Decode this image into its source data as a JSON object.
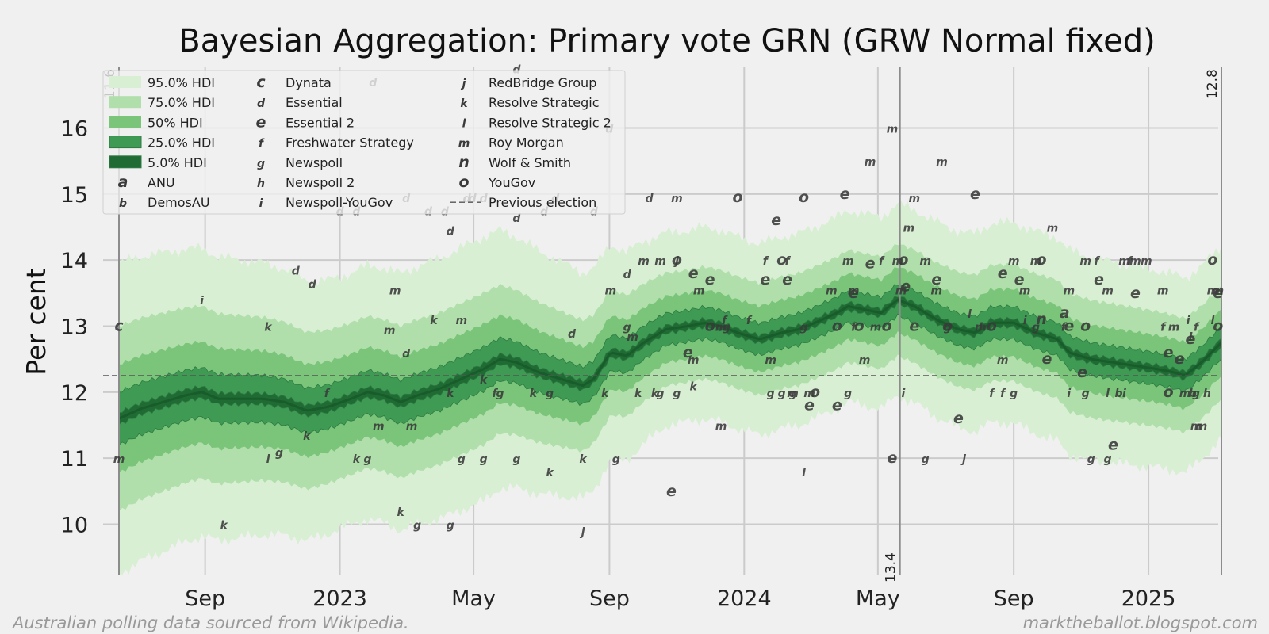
{
  "chart_data": {
    "type": "line",
    "title": "Bayesian Aggregation: Primary vote GRN (GRW Normal fixed)",
    "xlabel": "",
    "ylabel": "Per cent",
    "ylim": [
      9.2,
      16.9
    ],
    "xlim_days": [
      0,
      1005
    ],
    "yticks": [
      10,
      11,
      12,
      13,
      14,
      15,
      16
    ],
    "xticks": [
      {
        "day": 78,
        "label": "Sep"
      },
      {
        "day": 200,
        "label": "2023"
      },
      {
        "day": 321,
        "label": "May"
      },
      {
        "day": 444,
        "label": "Sep"
      },
      {
        "day": 566,
        "label": "2024"
      },
      {
        "day": 687,
        "label": "May"
      },
      {
        "day": 810,
        "label": "Sep"
      },
      {
        "day": 932,
        "label": "2025"
      }
    ],
    "previous_election": 12.25,
    "markers": [
      {
        "day": 0,
        "label": "11.6"
      },
      {
        "day": 707,
        "label": "13.4"
      },
      {
        "day": 998,
        "label": "12.8"
      }
    ],
    "median": [
      [
        0,
        11.6
      ],
      [
        20,
        11.75
      ],
      [
        40,
        11.85
      ],
      [
        60,
        11.95
      ],
      [
        75,
        12.0
      ],
      [
        90,
        11.9
      ],
      [
        110,
        11.9
      ],
      [
        130,
        11.9
      ],
      [
        150,
        11.85
      ],
      [
        170,
        11.72
      ],
      [
        190,
        11.78
      ],
      [
        210,
        11.9
      ],
      [
        225,
        12.0
      ],
      [
        240,
        11.95
      ],
      [
        255,
        11.85
      ],
      [
        270,
        11.95
      ],
      [
        290,
        12.05
      ],
      [
        310,
        12.2
      ],
      [
        330,
        12.35
      ],
      [
        345,
        12.5
      ],
      [
        360,
        12.45
      ],
      [
        380,
        12.3
      ],
      [
        400,
        12.2
      ],
      [
        420,
        12.1
      ],
      [
        430,
        12.2
      ],
      [
        445,
        12.6
      ],
      [
        460,
        12.55
      ],
      [
        475,
        12.75
      ],
      [
        495,
        12.95
      ],
      [
        515,
        13.0
      ],
      [
        530,
        13.05
      ],
      [
        545,
        13.0
      ],
      [
        560,
        12.9
      ],
      [
        580,
        12.8
      ],
      [
        600,
        12.9
      ],
      [
        615,
        12.95
      ],
      [
        630,
        13.05
      ],
      [
        650,
        13.2
      ],
      [
        660,
        13.3
      ],
      [
        675,
        13.25
      ],
      [
        690,
        13.2
      ],
      [
        705,
        13.4
      ],
      [
        720,
        13.3
      ],
      [
        740,
        13.1
      ],
      [
        760,
        12.95
      ],
      [
        775,
        12.9
      ],
      [
        790,
        13.05
      ],
      [
        810,
        13.05
      ],
      [
        830,
        12.9
      ],
      [
        850,
        12.8
      ],
      [
        860,
        12.6
      ],
      [
        880,
        12.5
      ],
      [
        900,
        12.45
      ],
      [
        920,
        12.4
      ],
      [
        940,
        12.35
      ],
      [
        955,
        12.3
      ],
      [
        965,
        12.25
      ],
      [
        980,
        12.45
      ],
      [
        998,
        12.75
      ]
    ],
    "bands": [
      {
        "name": "95.0% HDI",
        "widths": [
          [
            0,
            2.35
          ],
          [
            200,
            1.9
          ],
          [
            330,
            2.0
          ],
          [
            500,
            1.45
          ],
          [
            700,
            1.45
          ],
          [
            860,
            1.55
          ],
          [
            998,
            1.45
          ]
        ]
      },
      {
        "name": "75.0% HDI",
        "widths": [
          [
            0,
            1.4
          ],
          [
            200,
            1.15
          ],
          [
            330,
            1.15
          ],
          [
            500,
            0.85
          ],
          [
            700,
            0.85
          ],
          [
            860,
            0.9
          ],
          [
            998,
            0.85
          ]
        ]
      },
      {
        "name": "50% HDI",
        "widths": [
          [
            0,
            0.82
          ],
          [
            200,
            0.68
          ],
          [
            330,
            0.68
          ],
          [
            500,
            0.5
          ],
          [
            700,
            0.5
          ],
          [
            860,
            0.52
          ],
          [
            998,
            0.5
          ]
        ]
      },
      {
        "name": "25.0% HDI",
        "widths": [
          [
            0,
            0.4
          ],
          [
            200,
            0.33
          ],
          [
            330,
            0.33
          ],
          [
            500,
            0.24
          ],
          [
            700,
            0.24
          ],
          [
            860,
            0.25
          ],
          [
            998,
            0.24
          ]
        ]
      },
      {
        "name": "5.0% HDI",
        "widths": [
          [
            0,
            0.09
          ],
          [
            200,
            0.08
          ],
          [
            330,
            0.08
          ],
          [
            500,
            0.06
          ],
          [
            700,
            0.06
          ],
          [
            860,
            0.06
          ],
          [
            998,
            0.06
          ]
        ]
      }
    ],
    "band_colors": [
      "#d8efd4",
      "#b1dfab",
      "#7bc57a",
      "#3f9a54",
      "#1f6b33"
    ],
    "series": [
      {
        "code": "a",
        "name": "ANU",
        "points": [
          [
            856,
            13.2
          ]
        ]
      },
      {
        "code": "b",
        "name": "DemosAU",
        "points": [
          [
            905,
            12.0
          ],
          [
            972,
            12.0
          ]
        ]
      },
      {
        "code": "c",
        "name": "Dynata",
        "points": [
          [
            0,
            13.0
          ]
        ]
      },
      {
        "code": "d",
        "name": "Essential",
        "points": [
          [
            230,
            16.7
          ],
          [
            360,
            16.9
          ],
          [
            160,
            13.85
          ],
          [
            175,
            13.65
          ],
          [
            200,
            14.75
          ],
          [
            215,
            14.75
          ],
          [
            260,
            14.95
          ],
          [
            280,
            14.75
          ],
          [
            295,
            14.75
          ],
          [
            300,
            14.45
          ],
          [
            315,
            14.95
          ],
          [
            320,
            14.95
          ],
          [
            330,
            14.95
          ],
          [
            360,
            14.65
          ],
          [
            385,
            14.75
          ],
          [
            395,
            14.95
          ],
          [
            430,
            14.75
          ],
          [
            444,
            16.0
          ],
          [
            480,
            14.95
          ],
          [
            260,
            12.6
          ],
          [
            410,
            12.9
          ],
          [
            460,
            13.8
          ]
        ]
      },
      {
        "code": "e",
        "name": "Essential 2",
        "points": [
          [
            500,
            10.5
          ],
          [
            515,
            12.6
          ],
          [
            520,
            13.8
          ],
          [
            535,
            13.7
          ],
          [
            585,
            13.7
          ],
          [
            605,
            13.7
          ],
          [
            595,
            14.6
          ],
          [
            625,
            11.8
          ],
          [
            650,
            11.8
          ],
          [
            665,
            13.5
          ],
          [
            657,
            15.0
          ],
          [
            680,
            13.95
          ],
          [
            700,
            11.0
          ],
          [
            712,
            13.6
          ],
          [
            720,
            13.0
          ],
          [
            740,
            13.7
          ],
          [
            760,
            11.6
          ],
          [
            775,
            15.0
          ],
          [
            800,
            13.8
          ],
          [
            815,
            13.7
          ],
          [
            840,
            12.5
          ],
          [
            860,
            13.0
          ],
          [
            872,
            12.3
          ],
          [
            887,
            13.7
          ],
          [
            900,
            11.2
          ],
          [
            920,
            13.5
          ],
          [
            950,
            12.6
          ],
          [
            960,
            12.5
          ],
          [
            970,
            12.8
          ],
          [
            995,
            13.5
          ]
        ]
      },
      {
        "code": "f",
        "name": "Freshwater Strategy",
        "points": [
          [
            188,
            12.0
          ],
          [
            340,
            12.0
          ],
          [
            548,
            13.1
          ],
          [
            570,
            13.1
          ],
          [
            585,
            14.0
          ],
          [
            605,
            14.0
          ],
          [
            665,
            13.0
          ],
          [
            690,
            14.0
          ],
          [
            790,
            12.0
          ],
          [
            800,
            12.0
          ],
          [
            855,
            13.0
          ],
          [
            885,
            14.0
          ],
          [
            915,
            14.0
          ],
          [
            945,
            13.0
          ],
          [
            975,
            13.0
          ]
        ]
      },
      {
        "code": "g",
        "name": "Newspoll",
        "points": [
          [
            145,
            11.1
          ],
          [
            225,
            11.0
          ],
          [
            270,
            10.0
          ],
          [
            300,
            10.0
          ],
          [
            310,
            11.0
          ],
          [
            330,
            11.0
          ],
          [
            345,
            12.0
          ],
          [
            360,
            11.0
          ],
          [
            390,
            12.0
          ],
          [
            450,
            11.0
          ],
          [
            460,
            13.0
          ],
          [
            490,
            12.0
          ],
          [
            505,
            12.0
          ],
          [
            550,
            13.0
          ],
          [
            590,
            12.0
          ],
          [
            600,
            12.0
          ],
          [
            610,
            12.0
          ],
          [
            620,
            13.0
          ],
          [
            660,
            12.0
          ],
          [
            730,
            11.0
          ],
          [
            750,
            13.0
          ],
          [
            810,
            12.0
          ],
          [
            830,
            13.0
          ],
          [
            875,
            12.0
          ],
          [
            880,
            11.0
          ],
          [
            895,
            11.0
          ],
          [
            975,
            12.0
          ]
        ]
      },
      {
        "code": "h",
        "name": "Newspoll 2",
        "points": [
          [
            985,
            12.0
          ]
        ]
      },
      {
        "code": "i",
        "name": "Newspoll-YouGov",
        "points": [
          [
            75,
            13.4
          ],
          [
            135,
            11.0
          ],
          [
            710,
            12.0
          ],
          [
            820,
            13.1
          ],
          [
            860,
            12.0
          ],
          [
            910,
            12.0
          ],
          [
            968,
            13.1
          ]
        ]
      },
      {
        "code": "j",
        "name": "RedBridge Group",
        "points": [
          [
            420,
            9.9
          ],
          [
            505,
            14.0
          ],
          [
            765,
            11.0
          ]
        ]
      },
      {
        "code": "k",
        "name": "Resolve Strategic",
        "points": [
          [
            95,
            10.0
          ],
          [
            135,
            13.0
          ],
          [
            170,
            11.35
          ],
          [
            215,
            11.0
          ],
          [
            255,
            10.2
          ],
          [
            285,
            13.1
          ],
          [
            300,
            12.0
          ],
          [
            330,
            12.2
          ],
          [
            375,
            12.0
          ],
          [
            390,
            10.8
          ],
          [
            420,
            11.0
          ],
          [
            440,
            12.0
          ],
          [
            470,
            12.0
          ],
          [
            485,
            12.0
          ],
          [
            520,
            12.1
          ]
        ]
      },
      {
        "code": "l",
        "name": "Resolve Strategic 2",
        "points": [
          [
            620,
            10.8
          ],
          [
            770,
            13.2
          ],
          [
            780,
            13.0
          ],
          [
            895,
            12.0
          ],
          [
            970,
            12.85
          ],
          [
            990,
            13.1
          ]
        ]
      },
      {
        "code": "m",
        "name": "Roy Morgan",
        "points": [
          [
            0,
            11.0
          ],
          [
            250,
            13.55
          ],
          [
            245,
            12.95
          ],
          [
            235,
            11.5
          ],
          [
            265,
            11.5
          ],
          [
            310,
            13.1
          ],
          [
            445,
            13.55
          ],
          [
            465,
            12.85
          ],
          [
            475,
            14.0
          ],
          [
            490,
            14.0
          ],
          [
            505,
            14.95
          ],
          [
            525,
            13.55
          ],
          [
            545,
            11.5
          ],
          [
            520,
            12.5
          ],
          [
            545,
            13.0
          ],
          [
            590,
            12.5
          ],
          [
            610,
            12.0
          ],
          [
            625,
            12.0
          ],
          [
            645,
            13.55
          ],
          [
            660,
            14.0
          ],
          [
            665,
            13.55
          ],
          [
            675,
            12.5
          ],
          [
            680,
            15.5
          ],
          [
            685,
            13.0
          ],
          [
            700,
            16.0
          ],
          [
            705,
            14.0
          ],
          [
            708,
            13.55
          ],
          [
            715,
            14.5
          ],
          [
            720,
            14.95
          ],
          [
            730,
            14.0
          ],
          [
            740,
            13.55
          ],
          [
            745,
            15.5
          ],
          [
            780,
            13.0
          ],
          [
            800,
            12.5
          ],
          [
            810,
            14.0
          ],
          [
            820,
            13.55
          ],
          [
            830,
            14.0
          ],
          [
            845,
            14.5
          ],
          [
            860,
            13.55
          ],
          [
            875,
            14.0
          ],
          [
            895,
            13.55
          ],
          [
            910,
            14.0
          ],
          [
            920,
            14.0
          ],
          [
            930,
            14.0
          ],
          [
            945,
            13.55
          ],
          [
            955,
            13.0
          ],
          [
            965,
            12.0
          ],
          [
            975,
            11.5
          ],
          [
            980,
            11.5
          ],
          [
            990,
            13.55
          ],
          [
            995,
            13.55
          ]
        ]
      },
      {
        "code": "n",
        "name": "Wolf & Smith",
        "points": [
          [
            835,
            13.1
          ]
        ]
      },
      {
        "code": "o",
        "name": "YouGov",
        "points": [
          [
            505,
            14.0
          ],
          [
            535,
            13.0
          ],
          [
            560,
            14.95
          ],
          [
            600,
            14.0
          ],
          [
            620,
            14.95
          ],
          [
            630,
            12.0
          ],
          [
            650,
            13.0
          ],
          [
            670,
            13.0
          ],
          [
            695,
            13.0
          ],
          [
            710,
            14.0
          ],
          [
            750,
            13.0
          ],
          [
            790,
            13.0
          ],
          [
            835,
            14.0
          ],
          [
            875,
            13.0
          ],
          [
            950,
            12.0
          ],
          [
            990,
            14.0
          ],
          [
            995,
            13.0
          ]
        ]
      }
    ]
  },
  "legend": {
    "bands": [
      "95.0% HDI",
      "75.0% HDI",
      "50% HDI",
      "25.0% HDI",
      "5.0% HDI"
    ],
    "previous_election": "Previous election"
  },
  "footer": {
    "left": "Australian polling data sourced from Wikipedia.",
    "right": "marktheballot.blogspot.com"
  },
  "colors": {
    "background": "#f0f0f0",
    "grid": "#cbcbcb",
    "marker_line": "#8c8c8c",
    "text": "#222222"
  }
}
